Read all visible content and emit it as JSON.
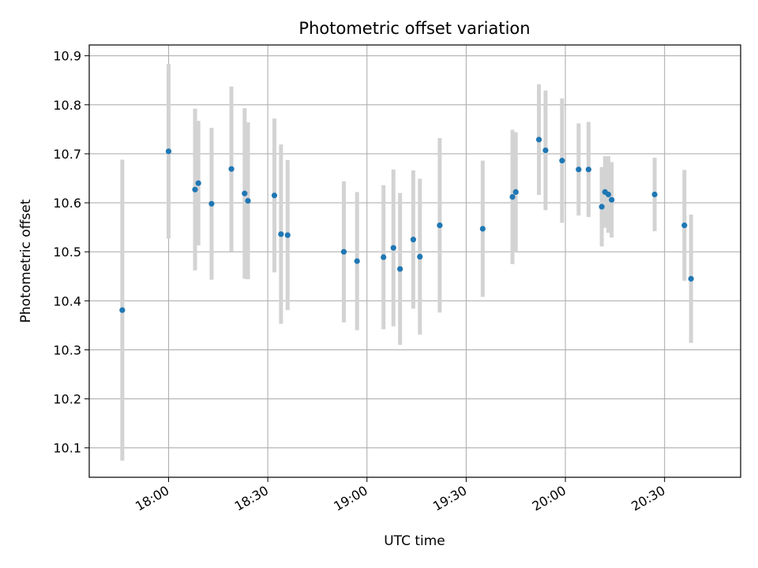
{
  "chart_data": {
    "type": "scatter",
    "title": "Photometric offset variation",
    "xlabel": "UTC time",
    "ylabel": "Photometric offset",
    "grid": true,
    "x_ticks": [
      "18:00",
      "18:30",
      "19:00",
      "19:30",
      "20:00",
      "20:30"
    ],
    "y_ticks": [
      "10.1",
      "10.2",
      "10.3",
      "10.4",
      "10.5",
      "10.6",
      "10.7",
      "10.8",
      "10.9"
    ],
    "xlim": [
      "17:36",
      "20:53"
    ],
    "ylim": [
      10.04,
      10.922
    ],
    "colors": {
      "point": "#1f77b4",
      "errorbar": "#d3d3d3",
      "grid": "#b0b0b0"
    },
    "points": [
      {
        "x": "17:46",
        "y": 10.381,
        "yerr": 0.307
      },
      {
        "x": "18:00",
        "y": 10.705,
        "yerr": 0.178
      },
      {
        "x": "18:08",
        "y": 10.627,
        "yerr": 0.165
      },
      {
        "x": "18:09",
        "y": 10.64,
        "yerr": 0.127
      },
      {
        "x": "18:13",
        "y": 10.598,
        "yerr": 0.155
      },
      {
        "x": "18:19",
        "y": 10.669,
        "yerr": 0.168
      },
      {
        "x": "18:23",
        "y": 10.619,
        "yerr": 0.174
      },
      {
        "x": "18:24",
        "y": 10.604,
        "yerr": 0.16
      },
      {
        "x": "18:32",
        "y": 10.615,
        "yerr": 0.157
      },
      {
        "x": "18:34",
        "y": 10.536,
        "yerr": 0.183
      },
      {
        "x": "18:36",
        "y": 10.534,
        "yerr": 0.153
      },
      {
        "x": "18:53",
        "y": 10.5,
        "yerr": 0.144
      },
      {
        "x": "18:57",
        "y": 10.481,
        "yerr": 0.141
      },
      {
        "x": "19:05",
        "y": 10.489,
        "yerr": 0.147
      },
      {
        "x": "19:08",
        "y": 10.508,
        "yerr": 0.16
      },
      {
        "x": "19:10",
        "y": 10.465,
        "yerr": 0.155
      },
      {
        "x": "19:14",
        "y": 10.525,
        "yerr": 0.141
      },
      {
        "x": "19:16",
        "y": 10.49,
        "yerr": 0.159
      },
      {
        "x": "19:22",
        "y": 10.554,
        "yerr": 0.178
      },
      {
        "x": "19:35",
        "y": 10.547,
        "yerr": 0.139
      },
      {
        "x": "19:44",
        "y": 10.612,
        "yerr": 0.137
      },
      {
        "x": "19:45",
        "y": 10.622,
        "yerr": 0.122
      },
      {
        "x": "19:52",
        "y": 10.729,
        "yerr": 0.113
      },
      {
        "x": "19:54",
        "y": 10.707,
        "yerr": 0.122
      },
      {
        "x": "19:59",
        "y": 10.686,
        "yerr": 0.127
      },
      {
        "x": "20:04",
        "y": 10.668,
        "yerr": 0.094
      },
      {
        "x": "20:07",
        "y": 10.668,
        "yerr": 0.097
      },
      {
        "x": "20:11",
        "y": 10.592,
        "yerr": 0.081
      },
      {
        "x": "20:12",
        "y": 10.622,
        "yerr": 0.073
      },
      {
        "x": "20:13",
        "y": 10.617,
        "yerr": 0.078
      },
      {
        "x": "20:14",
        "y": 10.606,
        "yerr": 0.077
      },
      {
        "x": "20:27",
        "y": 10.617,
        "yerr": 0.075
      },
      {
        "x": "20:36",
        "y": 10.554,
        "yerr": 0.113
      },
      {
        "x": "20:38",
        "y": 10.445,
        "yerr": 0.131
      }
    ]
  }
}
